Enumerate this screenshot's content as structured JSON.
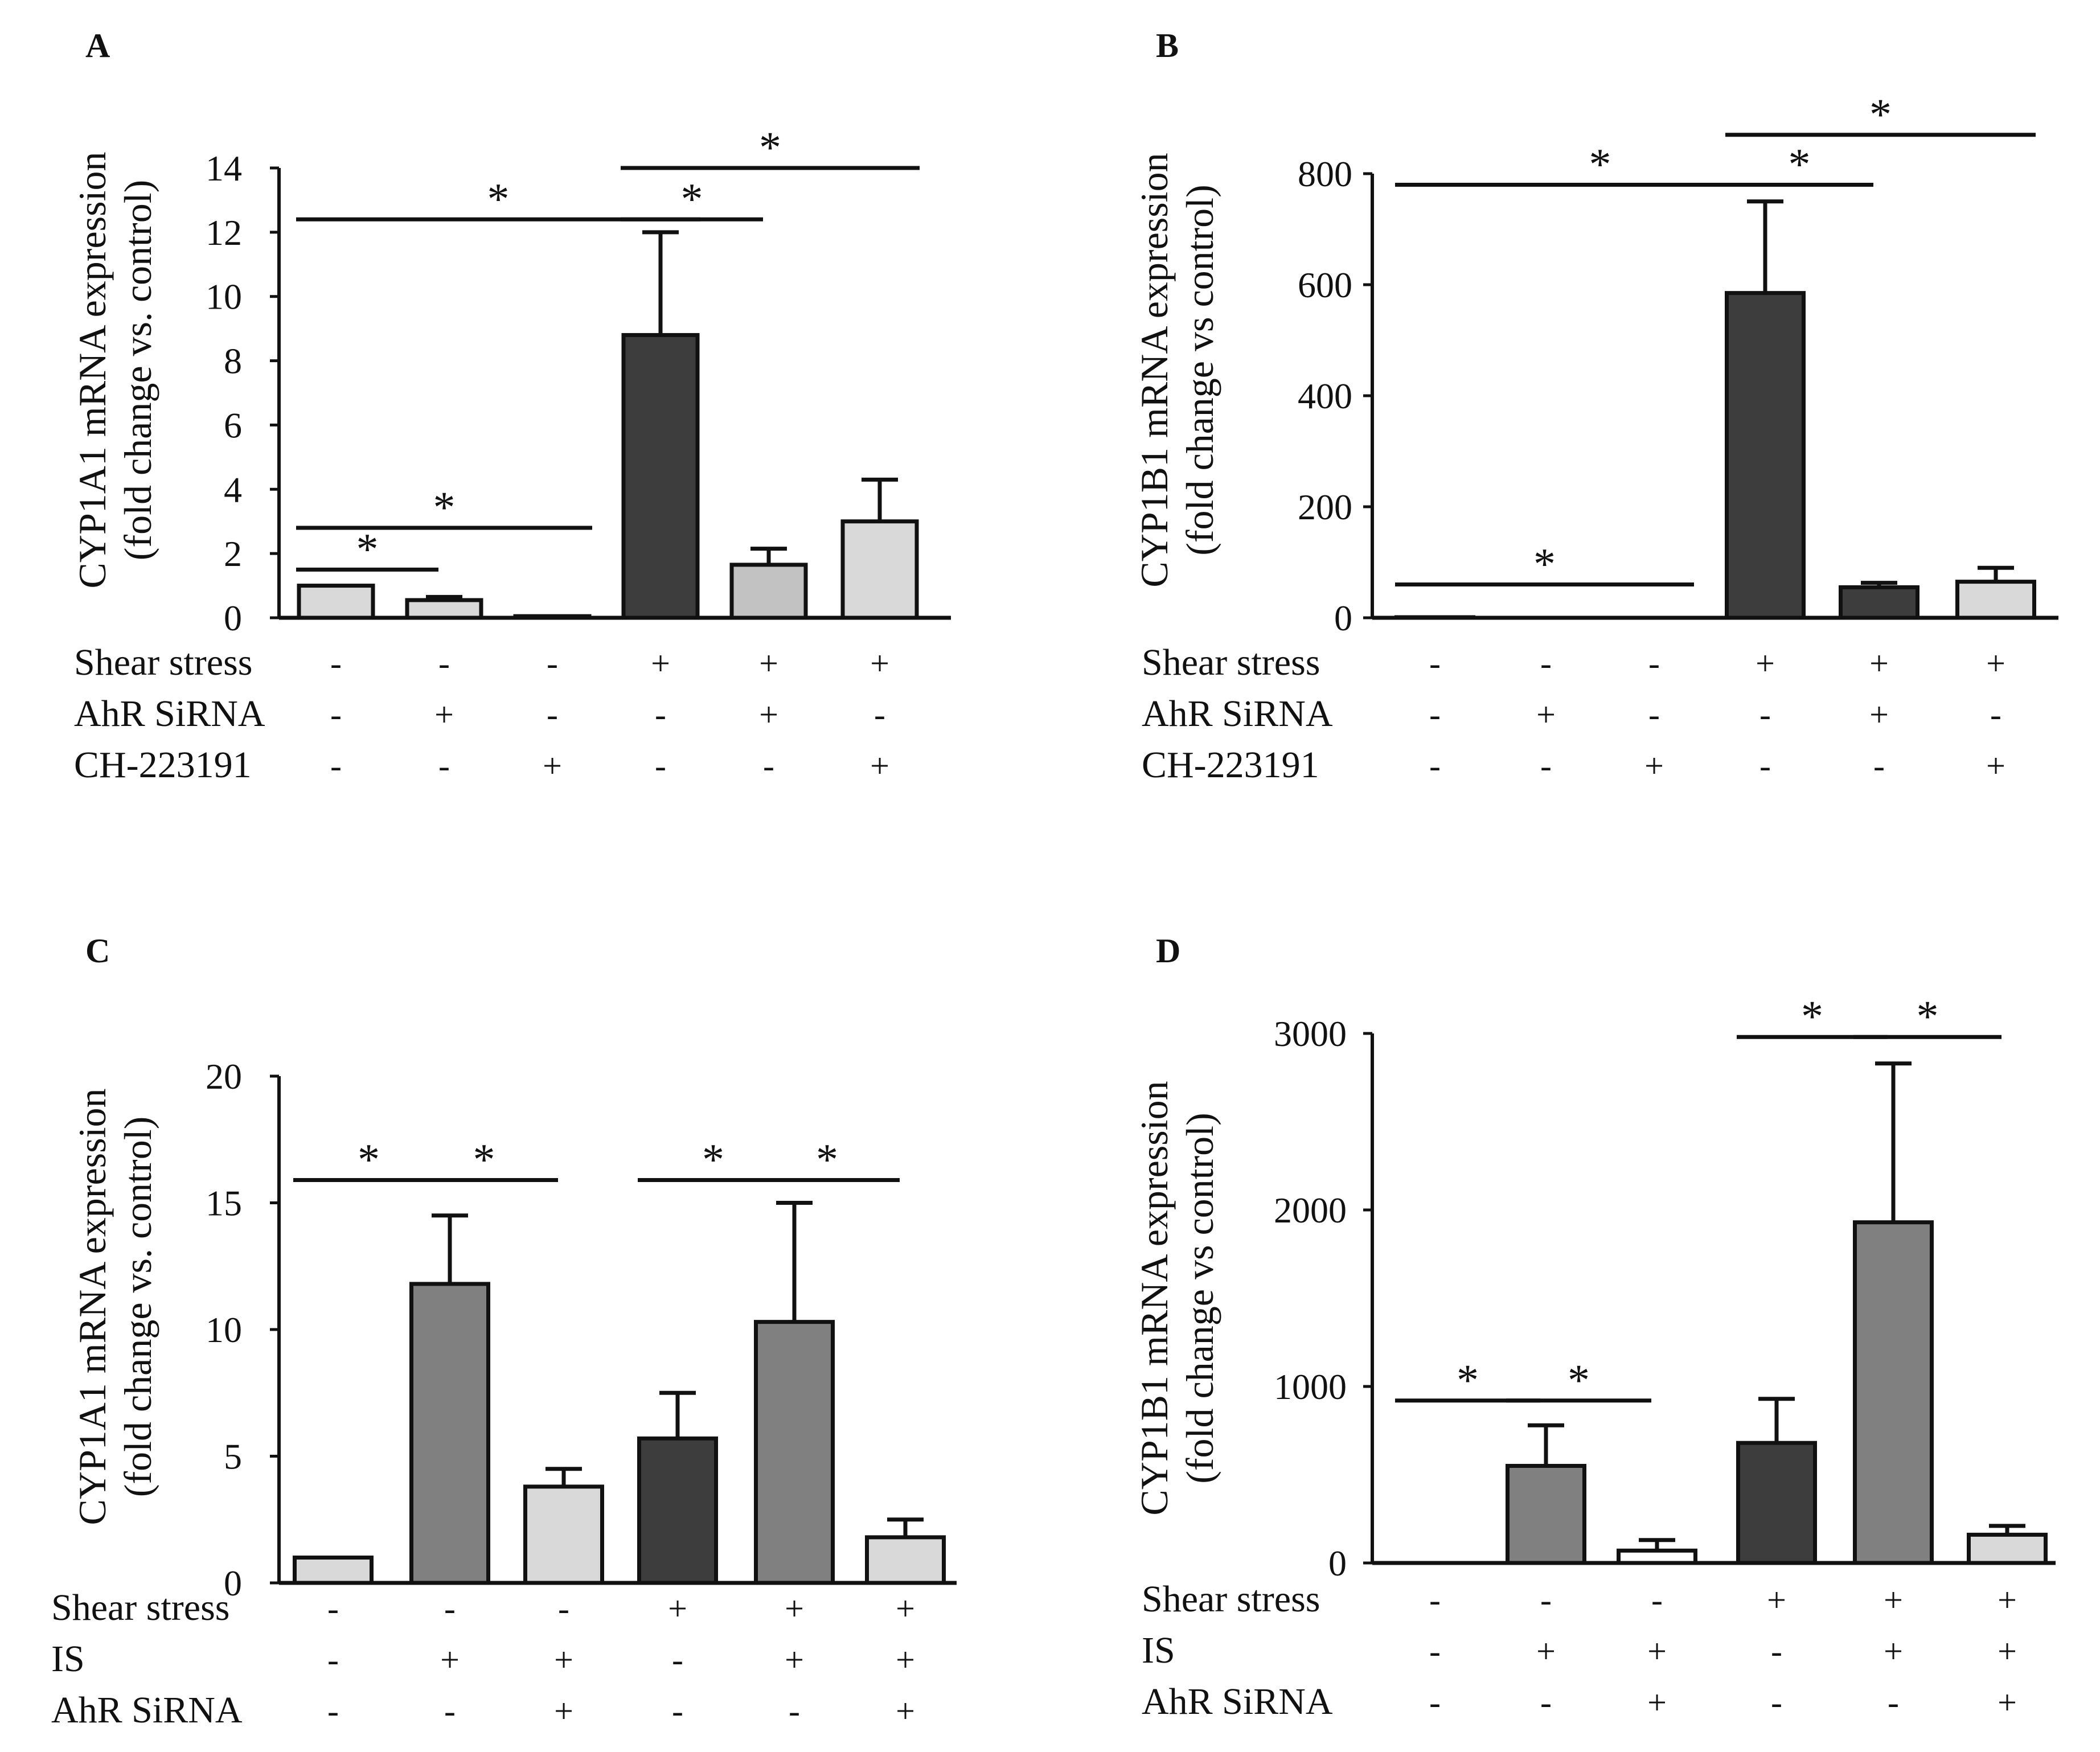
{
  "colors": {
    "light": "#d9d9d9",
    "medium_light": "#c2c2c2",
    "medium": "#808080",
    "dark": "#3d3d3d",
    "white": "#ffffff",
    "axis": "#111111"
  },
  "chart_data": [
    {
      "panel": "A",
      "type": "bar",
      "ylabel_line1": "CYP1A1 mRNA expression",
      "ylabel_line2": "(fold change vs. control)",
      "ylim": [
        0,
        14
      ],
      "yticks": [
        0,
        2,
        4,
        6,
        8,
        10,
        12,
        14
      ],
      "ytick_labels": [
        "0",
        "2",
        "4",
        "6",
        "8",
        "10",
        "12",
        "14"
      ],
      "values": [
        1.0,
        0.55,
        0.05,
        8.8,
        1.65,
        3.0
      ],
      "errors": [
        0,
        0.1,
        0,
        3.2,
        0.5,
        1.3
      ],
      "bar_colors": [
        "light",
        "light",
        "light",
        "dark",
        "medium_light",
        "light"
      ],
      "conditions": [
        {
          "label": "Shear stress",
          "signs": [
            "-",
            "-",
            "-",
            "+",
            "+",
            "+"
          ]
        },
        {
          "label": "AhR SiRNA",
          "signs": [
            "-",
            "+",
            "-",
            "-",
            "+",
            "-"
          ]
        },
        {
          "label": "CH-223191",
          "signs": [
            "-",
            "-",
            "+",
            "-",
            "-",
            "+"
          ]
        }
      ],
      "significance": [
        {
          "from": 0,
          "to": 1,
          "y": 1.5,
          "label": "*"
        },
        {
          "from": 0,
          "to": 2,
          "y": 2.8,
          "label": "*"
        },
        {
          "from": 0,
          "to": 3,
          "y": 12.4,
          "label": "*"
        },
        {
          "from": 3,
          "to": 4,
          "y": 12.4,
          "label": "*"
        },
        {
          "from": 3,
          "to": 5,
          "y": 14.0,
          "label": "*"
        }
      ]
    },
    {
      "panel": "B",
      "type": "bar",
      "ylabel_line1": "CYP1B1 mRNA expression",
      "ylabel_line2": "(fold change vs control)",
      "ylim": [
        0,
        800
      ],
      "yticks": [
        0,
        200,
        400,
        600,
        800
      ],
      "ytick_labels": [
        "0",
        "200",
        "400",
        "600",
        "800"
      ],
      "values": [
        1,
        0,
        0,
        585,
        55,
        65
      ],
      "errors": [
        0,
        0,
        0,
        165,
        8,
        25
      ],
      "bar_colors": [
        "light",
        "light",
        "light",
        "dark",
        "dark",
        "light"
      ],
      "conditions": [
        {
          "label": "Shear stress",
          "signs": [
            "-",
            "-",
            "-",
            "+",
            "+",
            "+"
          ]
        },
        {
          "label": "AhR SiRNA",
          "signs": [
            "-",
            "+",
            "-",
            "-",
            "+",
            "-"
          ]
        },
        {
          "label": "CH-223191",
          "signs": [
            "-",
            "-",
            "+",
            "-",
            "-",
            "+"
          ]
        }
      ],
      "significance": [
        {
          "from": 0,
          "to": 2,
          "y": 60,
          "label": "*"
        },
        {
          "from": 0,
          "to": 3,
          "y": 780,
          "label": "*"
        },
        {
          "from": 3,
          "to": 4,
          "y": 780,
          "label": "*"
        },
        {
          "from": 3,
          "to": 5,
          "y": 870,
          "label": "*"
        }
      ]
    },
    {
      "panel": "C",
      "type": "bar",
      "ylabel_line1": "CYP1A1 mRNA expression",
      "ylabel_line2": "(fold change vs. control)",
      "ylim": [
        0,
        20
      ],
      "yticks": [
        0,
        5,
        10,
        15,
        20
      ],
      "ytick_labels": [
        "0",
        "5",
        "10",
        "15",
        "20"
      ],
      "values": [
        1.0,
        11.8,
        3.8,
        5.7,
        10.3,
        1.8
      ],
      "errors": [
        0,
        2.7,
        0.7,
        1.8,
        4.7,
        0.7
      ],
      "bar_colors": [
        "light",
        "medium",
        "light",
        "dark",
        "medium",
        "light"
      ],
      "conditions": [
        {
          "label": "Shear stress",
          "signs": [
            "-",
            "-",
            "-",
            "+",
            "+",
            "+"
          ]
        },
        {
          "label": "IS",
          "signs": [
            "-",
            "+",
            "+",
            "-",
            "+",
            "+"
          ]
        },
        {
          "label": "AhR SiRNA",
          "signs": [
            "-",
            "-",
            "+",
            "-",
            "-",
            "+"
          ]
        }
      ],
      "significance": [
        {
          "from": 0,
          "to": 1,
          "y": 15.9,
          "label": "*"
        },
        {
          "from": 1,
          "to": 2,
          "y": 15.9,
          "label": "*"
        },
        {
          "from": 3,
          "to": 4,
          "y": 15.9,
          "label": "*"
        },
        {
          "from": 4,
          "to": 5,
          "y": 15.9,
          "label": "*"
        }
      ]
    },
    {
      "panel": "D",
      "type": "bar",
      "ylabel_line1": "CYP1B1 mRNA expression",
      "ylabel_line2": "(fold change vs control)",
      "ylim": [
        0,
        3000
      ],
      "yticks": [
        0,
        1000,
        2000,
        3000
      ],
      "ytick_labels": [
        "0",
        "1000",
        "2000",
        "3000"
      ],
      "values": [
        0,
        550,
        70,
        680,
        1930,
        160
      ],
      "errors": [
        0,
        230,
        60,
        250,
        900,
        50
      ],
      "bar_colors": [
        "light",
        "medium",
        "white",
        "dark",
        "medium",
        "light"
      ],
      "conditions": [
        {
          "label": "Shear stress",
          "signs": [
            "-",
            "-",
            "-",
            "+",
            "+",
            "+"
          ]
        },
        {
          "label": "IS",
          "signs": [
            "-",
            "+",
            "+",
            "-",
            "+",
            "+"
          ]
        },
        {
          "label": "AhR SiRNA",
          "signs": [
            "-",
            "-",
            "+",
            "-",
            "-",
            "+"
          ]
        }
      ],
      "significance": [
        {
          "from": 0,
          "to": 1,
          "y": 920,
          "label": "*"
        },
        {
          "from": 1,
          "to": 2,
          "y": 920,
          "label": "*"
        },
        {
          "from": 3,
          "to": 4,
          "y": 2980,
          "label": "*"
        },
        {
          "from": 4,
          "to": 5,
          "y": 2980,
          "label": "*"
        }
      ]
    }
  ]
}
